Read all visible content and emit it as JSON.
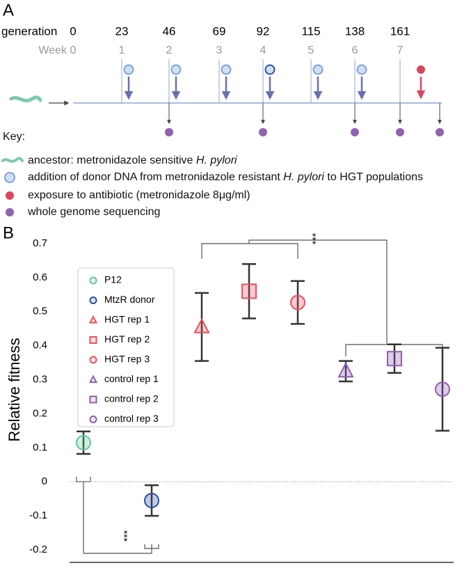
{
  "panel_a": {
    "label": "A",
    "generation_label": "generation",
    "generations": [
      0,
      23,
      46,
      69,
      92,
      115,
      138,
      161
    ],
    "week_label": "Week",
    "weeks": [
      0,
      1,
      2,
      3,
      4,
      5,
      6,
      7
    ],
    "key_title": "Key:",
    "key": [
      {
        "text": "ancestor: metronidazole sensitive ",
        "italic": "H. pylori"
      },
      {
        "text": "addition of donor DNA from metronidazole resistant ",
        "italic": "H. pylori",
        "after": " to HGT populations"
      },
      {
        "text": "exposure to antibiotic  (metronidazole 8μg/ml)"
      },
      {
        "text": "whole genome sequencing"
      }
    ]
  },
  "chart_data": {
    "type": "errorbar",
    "panel_label": "B",
    "ylabel": "Relative fitness",
    "ylim": [
      -0.2,
      0.7
    ],
    "yticks": [
      -0.2,
      -0.1,
      0,
      0.1,
      0.2,
      0.3,
      0.4,
      0.5,
      0.6,
      0.7
    ],
    "zero_line": true,
    "annotations": [
      "***",
      "***"
    ],
    "series": [
      {
        "name": "P12",
        "color": "#5cc997",
        "marker": "circle",
        "values": [
          0.115
        ],
        "errors": [
          0.033
        ]
      },
      {
        "name": "MtzR donor",
        "color": "#2b4fa0",
        "marker": "circle",
        "values": [
          -0.055
        ],
        "errors": [
          0.045
        ]
      },
      {
        "name": "HGT rep 1",
        "color": "#e8505b",
        "marker": "triangle",
        "values": [
          0.455
        ],
        "errors": [
          0.1
        ]
      },
      {
        "name": "HGT rep 2",
        "color": "#e8505b",
        "marker": "square",
        "values": [
          0.56
        ],
        "errors": [
          0.08
        ]
      },
      {
        "name": "HGT rep 3",
        "color": "#e8505b",
        "marker": "circle",
        "values": [
          0.527
        ],
        "errors": [
          0.063
        ]
      },
      {
        "name": "control rep 1",
        "color": "#8e5bb5",
        "marker": "triangle",
        "values": [
          0.325
        ],
        "errors": [
          0.03
        ]
      },
      {
        "name": "control rep 2",
        "color": "#8e5bb5",
        "marker": "square",
        "values": [
          0.362
        ],
        "errors": [
          0.042
        ]
      },
      {
        "name": "control rep 3",
        "color": "#8e5bb5",
        "marker": "circle",
        "values": [
          0.272
        ],
        "errors": [
          0.122
        ]
      }
    ]
  }
}
